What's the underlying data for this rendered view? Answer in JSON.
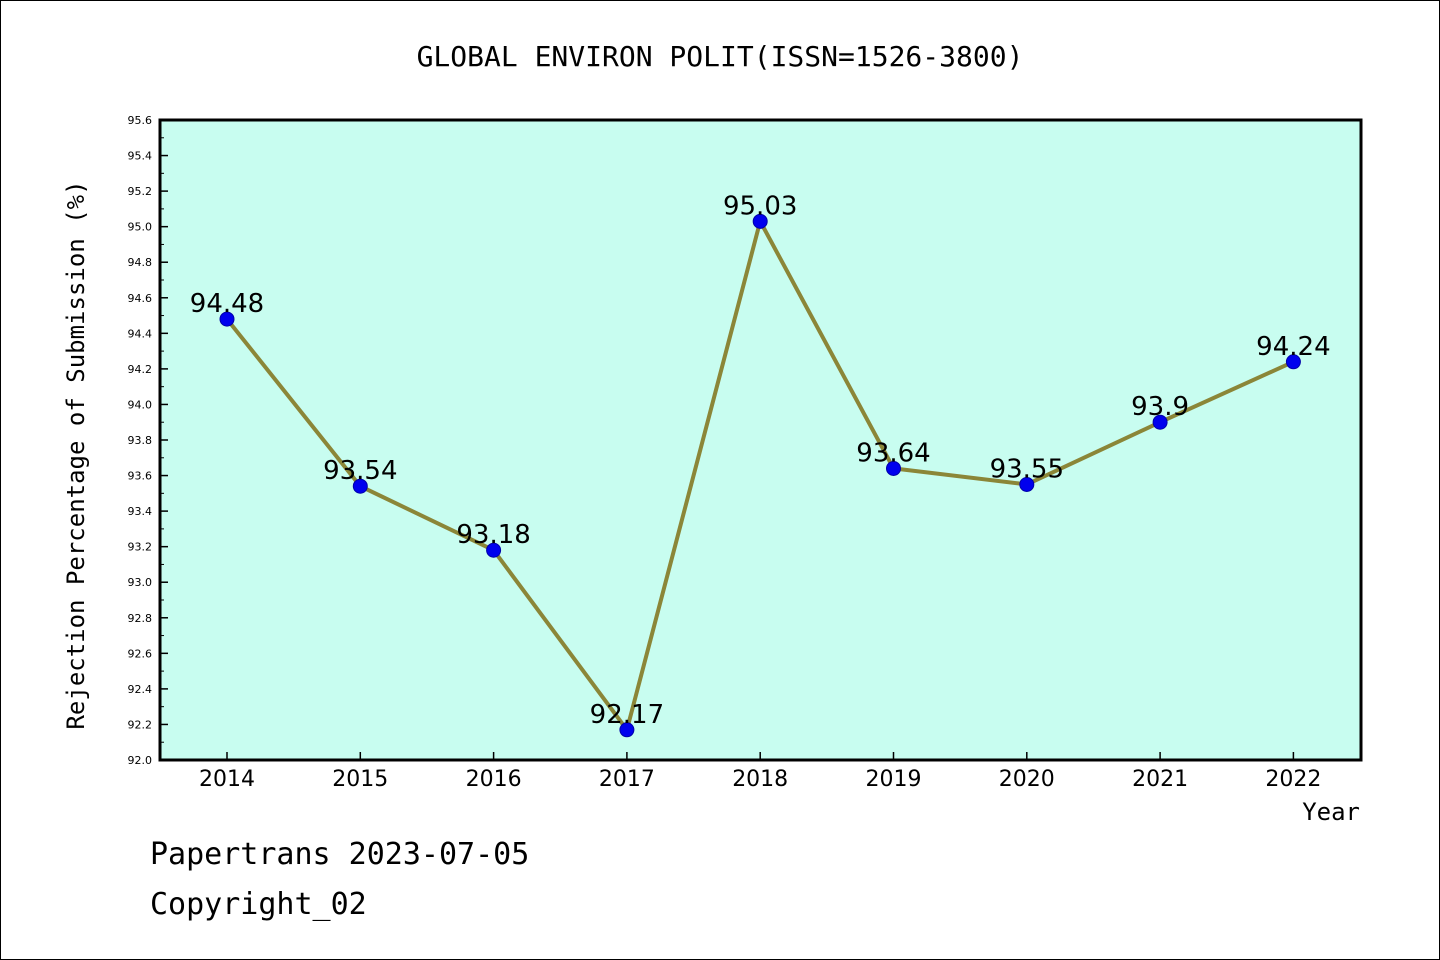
{
  "chart_data": {
    "type": "line",
    "title": "GLOBAL ENVIRON POLIT(ISSN=1526-3800)",
    "xlabel": "Year",
    "ylabel": "Rejection Percentage of Submission (%)",
    "x": [
      "2014",
      "2015",
      "2016",
      "2017",
      "2018",
      "2019",
      "2020",
      "2021",
      "2022"
    ],
    "series": [
      {
        "values": [
          94.48,
          93.54,
          93.18,
          92.17,
          95.03,
          93.64,
          93.55,
          93.9,
          94.24
        ],
        "labels": [
          "94.48",
          "93.54",
          "93.18",
          "92.17",
          "95.03",
          "93.64",
          "93.55",
          "93.9",
          "94.24"
        ]
      }
    ],
    "ylim": [
      92.0,
      95.6
    ],
    "yticks": [
      "92.0",
      "92.2",
      "92.4",
      "92.6",
      "92.8",
      "93.0",
      "93.2",
      "93.4",
      "93.6",
      "93.8",
      "94.0",
      "94.2",
      "94.4",
      "94.6",
      "94.8",
      "95.0",
      "95.2",
      "95.4",
      "95.6"
    ],
    "grid": false,
    "colors": {
      "plot_background": "#c8fdf0",
      "line": "#8b8638",
      "marker": "#0000ee"
    }
  },
  "footer": {
    "source": "Papertrans 2023-07-05",
    "copyright": "Copyright_02"
  }
}
